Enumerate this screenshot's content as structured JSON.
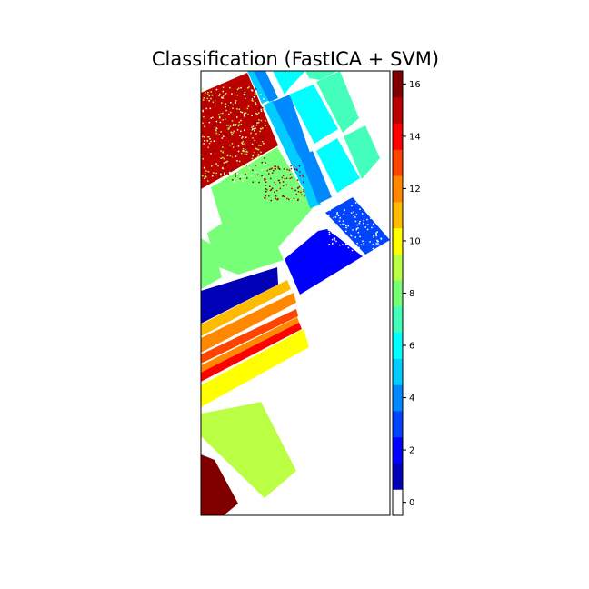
{
  "chart_data": {
    "type": "heatmap",
    "title": "Classification (FastICA + SVM)",
    "xlabel": "",
    "ylabel": "",
    "colorbar": {
      "vmin": -0.5,
      "vmax": 16.5,
      "ticks": [
        0,
        2,
        4,
        6,
        8,
        10,
        12,
        14,
        16
      ],
      "tick_labels": [
        "0",
        "2",
        "4",
        "6",
        "8",
        "10",
        "12",
        "14",
        "16"
      ],
      "class_colors": [
        "#ffffff",
        "#0000b7",
        "#0000ff",
        "#0044ff",
        "#0088ff",
        "#00ccff",
        "#00ffff",
        "#44ffbb",
        "#77ff77",
        "#bbff44",
        "#ffff00",
        "#ffbb00",
        "#ff8800",
        "#ff4400",
        "#ff0000",
        "#bb0000",
        "#800000"
      ]
    },
    "classes_shown": [
      1,
      2,
      3,
      4,
      5,
      6,
      7,
      8,
      9,
      10,
      11,
      12,
      14,
      15,
      16
    ]
  }
}
